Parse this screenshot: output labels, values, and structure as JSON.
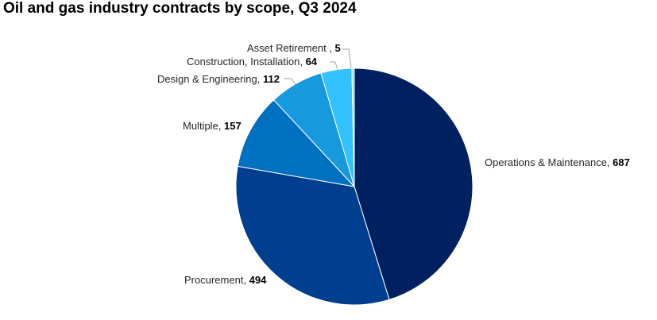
{
  "chart_data": {
    "type": "pie",
    "title": "Oil and gas industry contracts by scope, Q3 2024",
    "slices": [
      {
        "label": "Operations & Maintenance",
        "value": 687,
        "color": "#002060"
      },
      {
        "label": "Procurement",
        "value": 494,
        "color": "#003F8F"
      },
      {
        "label": "Multiple",
        "value": 157,
        "color": "#0070C0"
      },
      {
        "label": "Design & Engineering",
        "value": 112,
        "color": "#1699DD"
      },
      {
        "label": "Construction, Installation",
        "value": 64,
        "color": "#33C1FF"
      },
      {
        "label": "Asset Retirement ",
        "value": 5,
        "color": "#7FD9FF"
      }
    ],
    "legend": "none",
    "data_labels": "outside"
  }
}
